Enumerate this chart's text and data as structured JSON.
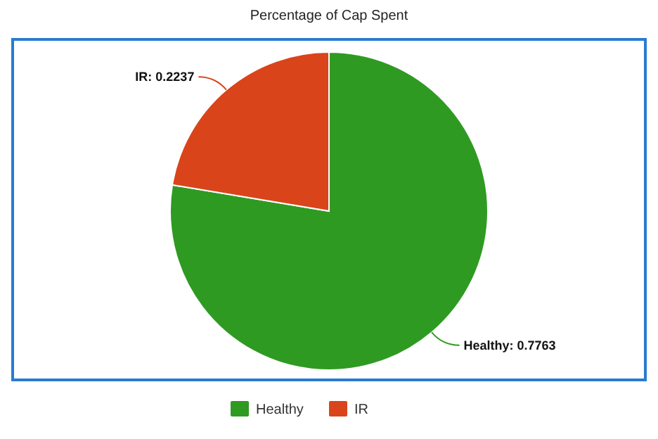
{
  "chart_data": {
    "type": "pie",
    "title": "Percentage of Cap Spent",
    "categories": [
      "Healthy",
      "IR"
    ],
    "values": [
      0.7763,
      0.2237
    ],
    "colors": [
      "#2f9a22",
      "#d9441a"
    ],
    "value_labels": [
      "Healthy: 0.7763",
      "IR: 0.2237"
    ],
    "legend": "bottom"
  }
}
